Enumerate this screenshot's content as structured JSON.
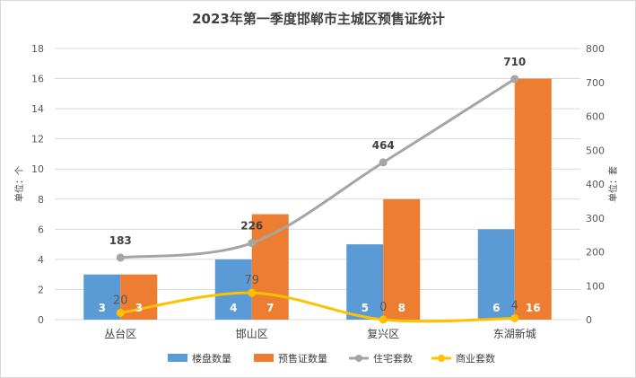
{
  "chart_data": {
    "type": "bar",
    "title": "2023年第一季度邯郸市主城区预售证统计",
    "categories": [
      "丛台区",
      "邯山区",
      "复兴区",
      "东湖新城"
    ],
    "series": [
      {
        "name": "楼盘数量",
        "type": "bar",
        "axis": "left",
        "color": "#5b9bd5",
        "values": [
          3,
          4,
          5,
          6
        ]
      },
      {
        "name": "预售证数量",
        "type": "bar",
        "axis": "left",
        "color": "#ed7d31",
        "values": [
          3,
          7,
          8,
          16
        ]
      },
      {
        "name": "住宅套数",
        "type": "line",
        "axis": "right",
        "color": "#a5a5a5",
        "values": [
          183,
          226,
          464,
          710
        ]
      },
      {
        "name": "商业套数",
        "type": "line",
        "axis": "right",
        "color": "#ffc000",
        "values": [
          20,
          79,
          0,
          4
        ]
      }
    ],
    "y_left": {
      "label": "单位：个",
      "min": 0,
      "max": 18,
      "step": 2
    },
    "y_right": {
      "label": "单位：套",
      "min": 0,
      "max": 800,
      "step": 100
    },
    "grid": true,
    "legend_position": "bottom"
  }
}
